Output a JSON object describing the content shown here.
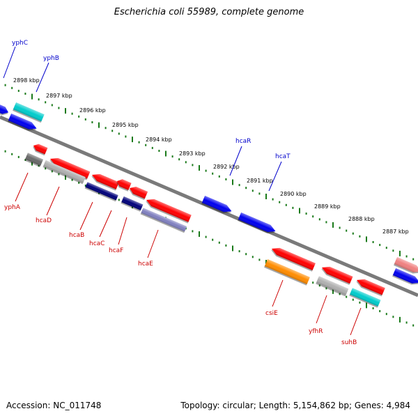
{
  "title": "Escherichia coli 55989, complete genome",
  "footer": {
    "accession": "Accession: NC_011748",
    "summary": "Topology: circular; Length: 5,154,862 bp; Genes: 4,984"
  },
  "colors": {
    "backbone": "#808080",
    "tick": "#1a7a1a",
    "forward_label": "#0000cc",
    "reverse_label": "#cc0000",
    "gene_red": "#ff0000",
    "gene_blue": "#0000ee",
    "gene_cyan": "#00cccc",
    "gene_orange": "#ff8c00",
    "gene_gray": "#b0b0b0",
    "gene_navy": "#00007a",
    "gene_pink": "#f08080"
  },
  "scale_labels": [
    "2898 kbp",
    "2897 kbp",
    "2896 kbp",
    "2895 kbp",
    "2894 kbp",
    "2893 kbp",
    "2892 kbp",
    "2891 kbp",
    "2890 kbp",
    "2889 kbp",
    "2888 kbp",
    "2887 kbp"
  ],
  "forward_genes": [
    "yphC",
    "yphB",
    "hcaR",
    "hcaT"
  ],
  "reverse_genes": [
    "yphA",
    "hcaD",
    "hcaB",
    "hcaC",
    "hcaF",
    "hcaE",
    "csiE",
    "yfhR",
    "suhB"
  ]
}
